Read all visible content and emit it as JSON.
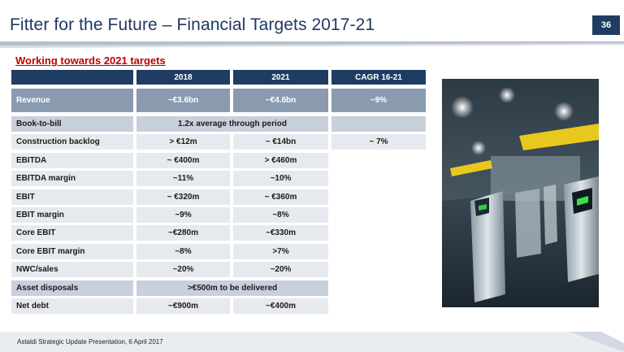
{
  "slide": {
    "title": "Fitter for the Future – Financial Targets 2017-21",
    "page_number": "36",
    "subtitle": "Working towards 2021 targets",
    "footer": "Astaldi Strategic Update Presentation, 6 April 2017"
  },
  "table": {
    "headers": [
      "2018",
      "2021",
      "CAGR 16-21"
    ],
    "rows": [
      {
        "label": "Revenue",
        "c2018": "~€3.6bn",
        "c2021": "~€4.6bn",
        "cagr": "~9%"
      },
      {
        "label": "Book-to-bill",
        "merged": "1.2x average through period",
        "cagr": ""
      },
      {
        "label": "Construction backlog",
        "c2018": "> €12m",
        "c2021": "~ €14bn",
        "cagr": "~ 7%"
      },
      {
        "label": "EBITDA",
        "c2018": "~ €400m",
        "c2021": "> €460m"
      },
      {
        "label": "EBITDA margin",
        "c2018": "~11%",
        "c2021": "~10%"
      },
      {
        "label": "EBIT",
        "c2018": "~ €320m",
        "c2021": "~ €360m"
      },
      {
        "label": "EBIT margin",
        "c2018": "~9%",
        "c2021": "~8%"
      },
      {
        "label": "Core EBIT",
        "c2018": "~€280m",
        "c2021": "~€330m"
      },
      {
        "label": "Core EBIT margin",
        "c2018": "~8%",
        "c2021": ">7%"
      },
      {
        "label": "NWC/sales",
        "c2018": "~20%",
        "c2021": "~20%"
      },
      {
        "label": "Asset disposals",
        "merged": ">€500m to be delivered"
      },
      {
        "label": "Net debt",
        "c2018": "~€900m",
        "c2021": "~€400m"
      }
    ]
  },
  "colors": {
    "header": "#1f3d63",
    "title": "#1f3864",
    "subtitle": "#c00000",
    "revenue_row": "#8a9bb0",
    "light_row": "#e6e9ee",
    "mid_row": "#c8d0dc"
  },
  "icons": {
    "photo": "metro-turnstile-photo"
  }
}
